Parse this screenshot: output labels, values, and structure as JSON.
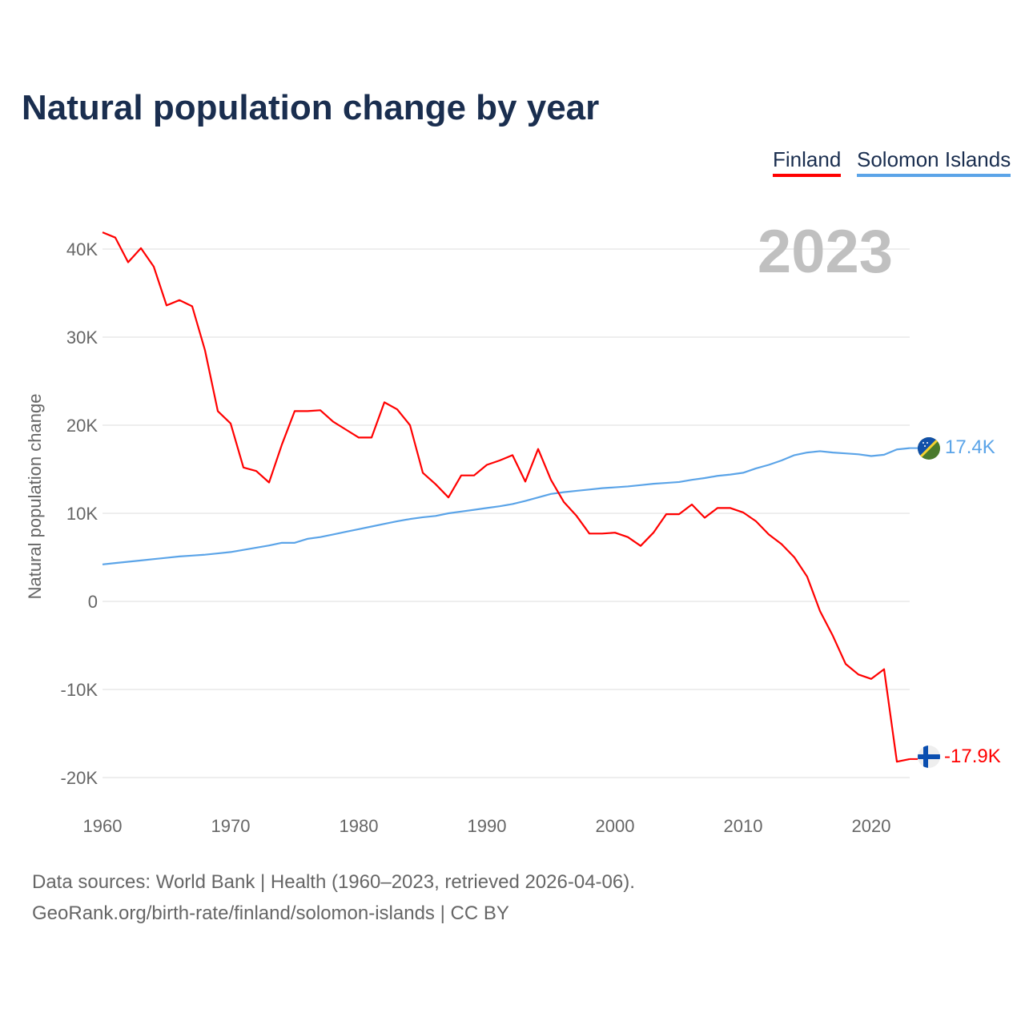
{
  "chart_data": {
    "type": "line",
    "title": "Natural population change by year",
    "ylabel": "Natural population change",
    "xlabel": "",
    "current_year_label": "2023",
    "xlim": [
      1960,
      2023
    ],
    "ylim": [
      -22000,
      45000
    ],
    "x_ticks": [
      1960,
      1970,
      1980,
      1990,
      2000,
      2010,
      2020
    ],
    "x_tick_labels": [
      "1960",
      "1970",
      "1980",
      "1990",
      "2000",
      "2010",
      "2020"
    ],
    "y_ticks": [
      -20000,
      -10000,
      0,
      10000,
      20000,
      30000,
      40000
    ],
    "y_tick_labels": [
      "-20K",
      "-10K",
      "0",
      "10K",
      "20K",
      "30K",
      "40K"
    ],
    "grid": true,
    "legend_position": "top-right",
    "x": [
      1960,
      1961,
      1962,
      1963,
      1964,
      1965,
      1966,
      1967,
      1968,
      1969,
      1970,
      1971,
      1972,
      1973,
      1974,
      1975,
      1976,
      1977,
      1978,
      1979,
      1980,
      1981,
      1982,
      1983,
      1984,
      1985,
      1986,
      1987,
      1988,
      1989,
      1990,
      1991,
      1992,
      1993,
      1994,
      1995,
      1996,
      1997,
      1998,
      1999,
      2000,
      2001,
      2002,
      2003,
      2004,
      2005,
      2006,
      2007,
      2008,
      2009,
      2010,
      2011,
      2012,
      2013,
      2014,
      2015,
      2016,
      2017,
      2018,
      2019,
      2020,
      2021,
      2022,
      2023
    ],
    "series": [
      {
        "name": "Finland",
        "color": "#ff0000",
        "end_label": "-17.9K",
        "values": [
          41900,
          41300,
          38500,
          40100,
          38000,
          33600,
          34200,
          33500,
          28500,
          21600,
          20200,
          15200,
          14800,
          13500,
          17800,
          21600,
          21600,
          21700,
          20400,
          19500,
          18600,
          18600,
          22600,
          21800,
          20000,
          14600,
          13300,
          11800,
          14300,
          14300,
          15500,
          16000,
          16600,
          13600,
          17300,
          13800,
          11300,
          9700,
          7700,
          7700,
          7800,
          7300,
          6300,
          7800,
          9900,
          9900,
          11000,
          9500,
          10600,
          10600,
          10100,
          9100,
          7600,
          6500,
          5000,
          2800,
          -1100,
          -3900,
          -7100,
          -8300,
          -8800,
          -7700,
          -18200,
          -17900
        ]
      },
      {
        "name": "Solomon Islands",
        "color": "#5ba4e8",
        "end_label": "17.4K",
        "values": [
          4200,
          4350,
          4500,
          4650,
          4800,
          4950,
          5100,
          5200,
          5300,
          5450,
          5600,
          5850,
          6100,
          6350,
          6650,
          6650,
          7100,
          7300,
          7600,
          7900,
          8200,
          8500,
          8800,
          9100,
          9350,
          9550,
          9700,
          10000,
          10200,
          10400,
          10600,
          10800,
          11050,
          11400,
          11800,
          12200,
          12400,
          12550,
          12700,
          12850,
          12950,
          13050,
          13200,
          13350,
          13450,
          13550,
          13800,
          14000,
          14250,
          14400,
          14600,
          15100,
          15500,
          16000,
          16600,
          16900,
          17050,
          16900,
          16800,
          16700,
          16500,
          16650,
          17250,
          17400
        ]
      }
    ]
  },
  "footer": {
    "line1": "Data sources: World Bank | Health (1960–2023, retrieved 2026-04-06).",
    "line2": "GeoRank.org/birth-rate/finland/solomon-islands | CC BY"
  }
}
